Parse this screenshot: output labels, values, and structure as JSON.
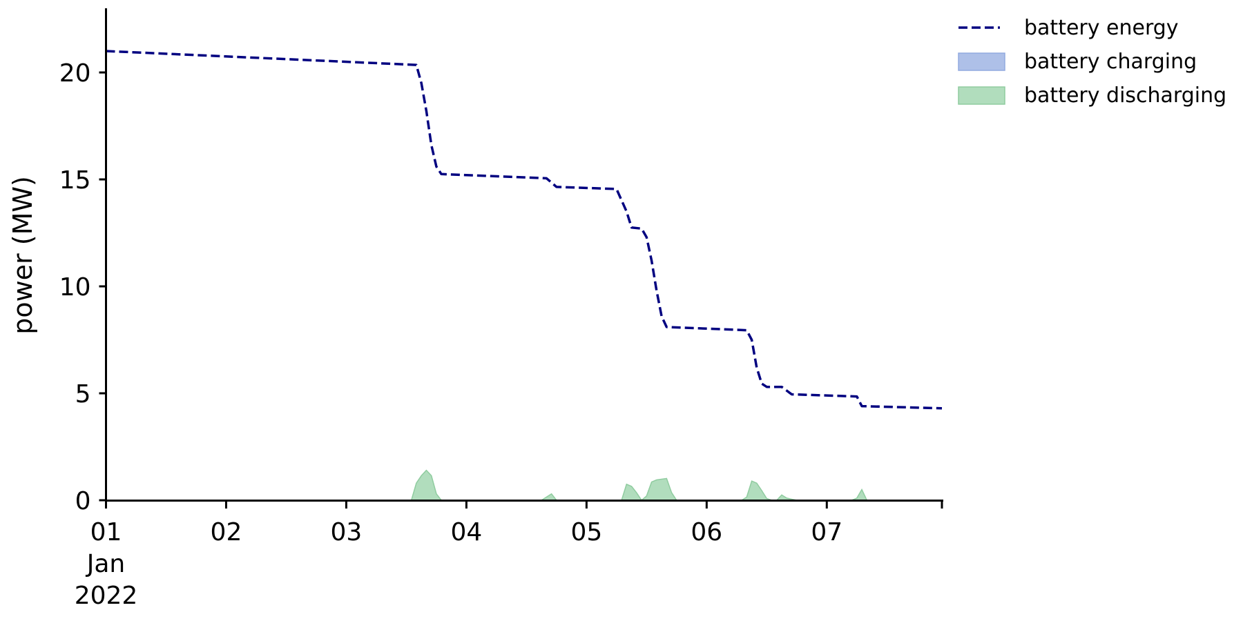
{
  "chart_data": {
    "type": "line",
    "title": "",
    "xlabel": "",
    "ylabel": "power (MW)",
    "x_ticks": [
      {
        "x": "2022-01-01",
        "lines": [
          "01",
          "Jan",
          "2022"
        ]
      },
      {
        "x": "2022-01-02",
        "lines": [
          "02"
        ]
      },
      {
        "x": "2022-01-03",
        "lines": [
          "03"
        ]
      },
      {
        "x": "2022-01-04",
        "lines": [
          "04"
        ]
      },
      {
        "x": "2022-01-05",
        "lines": [
          "05"
        ]
      },
      {
        "x": "2022-01-06",
        "lines": [
          "06"
        ]
      },
      {
        "x": "2022-01-07",
        "lines": [
          "07"
        ]
      }
    ],
    "xlim": [
      "2022-01-01 00:00",
      "2022-01-07 23:00"
    ],
    "y_ticks": [
      0,
      5,
      10,
      15,
      20
    ],
    "ylim": [
      0,
      23
    ],
    "grid": false,
    "legend": {
      "location": "outside top-right",
      "entries": [
        {
          "label": "battery energy",
          "style": "dashed-line",
          "color": "#000080"
        },
        {
          "label": "battery charging",
          "style": "fill",
          "color": "#aec0e8",
          "edge": "#92aadf"
        },
        {
          "label": "battery discharging",
          "style": "fill",
          "color": "#b1ddbd",
          "edge": "#8fcc9f"
        }
      ]
    },
    "series": [
      {
        "name": "battery energy",
        "kind": "line",
        "style": "dashed",
        "color": "#000080",
        "points": [
          [
            "2022-01-01 00:00",
            21.0
          ],
          [
            "2022-01-03 14:00",
            20.35
          ],
          [
            "2022-01-03 15:00",
            19.5
          ],
          [
            "2022-01-03 16:00",
            18.2
          ],
          [
            "2022-01-03 17:00",
            16.6
          ],
          [
            "2022-01-03 18:00",
            15.6
          ],
          [
            "2022-01-03 19:00",
            15.25
          ],
          [
            "2022-01-04 16:00",
            15.05
          ],
          [
            "2022-01-04 18:00",
            14.65
          ],
          [
            "2022-01-05 06:00",
            14.55
          ],
          [
            "2022-01-05 08:00",
            13.5
          ],
          [
            "2022-01-05 09:00",
            12.75
          ],
          [
            "2022-01-05 11:00",
            12.7
          ],
          [
            "2022-01-05 12:00",
            12.3
          ],
          [
            "2022-01-05 13:00",
            11.2
          ],
          [
            "2022-01-05 14:00",
            9.8
          ],
          [
            "2022-01-05 15:00",
            8.6
          ],
          [
            "2022-01-05 16:00",
            8.1
          ],
          [
            "2022-01-06 08:00",
            7.95
          ],
          [
            "2022-01-06 09:00",
            7.5
          ],
          [
            "2022-01-06 10:00",
            6.2
          ],
          [
            "2022-01-06 11:00",
            5.45
          ],
          [
            "2022-01-06 12:00",
            5.3
          ],
          [
            "2022-01-06 15:00",
            5.3
          ],
          [
            "2022-01-06 17:00",
            4.95
          ],
          [
            "2022-01-07 06:00",
            4.85
          ],
          [
            "2022-01-07 07:00",
            4.4
          ],
          [
            "2022-01-07 23:00",
            4.3
          ]
        ]
      },
      {
        "name": "battery charging",
        "kind": "area",
        "color": "#aec0e8",
        "points": []
      },
      {
        "name": "battery discharging",
        "kind": "area",
        "color": "#b1ddbd",
        "edge": "#8fcc9f",
        "points": [
          [
            "2022-01-01 00:00",
            0
          ],
          [
            "2022-01-03 13:00",
            0
          ],
          [
            "2022-01-03 14:00",
            0.8
          ],
          [
            "2022-01-03 15:00",
            1.15
          ],
          [
            "2022-01-03 16:00",
            1.4
          ],
          [
            "2022-01-03 17:00",
            1.15
          ],
          [
            "2022-01-03 18:00",
            0.3
          ],
          [
            "2022-01-03 19:00",
            0
          ],
          [
            "2022-01-04 15:00",
            0
          ],
          [
            "2022-01-04 17:00",
            0.3
          ],
          [
            "2022-01-04 18:00",
            0
          ],
          [
            "2022-01-05 07:00",
            0
          ],
          [
            "2022-01-05 08:00",
            0.75
          ],
          [
            "2022-01-05 09:00",
            0.65
          ],
          [
            "2022-01-05 10:00",
            0.35
          ],
          [
            "2022-01-05 11:00",
            0
          ],
          [
            "2022-01-05 12:00",
            0.2
          ],
          [
            "2022-01-05 13:00",
            0.85
          ],
          [
            "2022-01-05 14:00",
            0.95
          ],
          [
            "2022-01-05 16:00",
            1.02
          ],
          [
            "2022-01-05 17:00",
            0.35
          ],
          [
            "2022-01-05 18:00",
            0
          ],
          [
            "2022-01-06 07:00",
            0
          ],
          [
            "2022-01-06 08:00",
            0.15
          ],
          [
            "2022-01-06 09:00",
            0.9
          ],
          [
            "2022-01-06 10:00",
            0.8
          ],
          [
            "2022-01-06 11:00",
            0.45
          ],
          [
            "2022-01-06 12:00",
            0.08
          ],
          [
            "2022-01-06 13:00",
            0
          ],
          [
            "2022-01-06 14:00",
            0
          ],
          [
            "2022-01-06 15:00",
            0.25
          ],
          [
            "2022-01-06 16:00",
            0.1
          ],
          [
            "2022-01-06 17:00",
            0.05
          ],
          [
            "2022-01-06 18:00",
            0
          ],
          [
            "2022-01-07 05:00",
            0
          ],
          [
            "2022-01-07 06:00",
            0.1
          ],
          [
            "2022-01-07 07:00",
            0.5
          ],
          [
            "2022-01-07 08:00",
            0
          ],
          [
            "2022-01-07 23:00",
            0
          ]
        ]
      }
    ]
  }
}
